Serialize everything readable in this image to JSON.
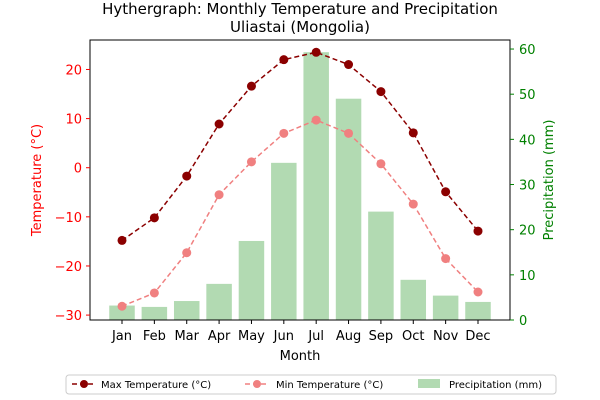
{
  "chart_data": {
    "type": "line",
    "title": "Hythergraph: Monthly Temperature and Precipitation",
    "subtitle": "Uliastai (Mongolia)",
    "xlabel": "Month",
    "ylabel_left": "Temperature (°C)",
    "ylabel_right": "Precipitation (mm)",
    "categories": [
      "Jan",
      "Feb",
      "Mar",
      "Apr",
      "May",
      "Jun",
      "Jul",
      "Aug",
      "Sep",
      "Oct",
      "Nov",
      "Dec"
    ],
    "ylim_left": [
      -31,
      26
    ],
    "ylim_right": [
      0,
      62
    ],
    "yticks_left": [
      -30,
      -20,
      -10,
      0,
      10,
      20
    ],
    "yticks_right": [
      0,
      10,
      20,
      30,
      40,
      50,
      60
    ],
    "grid": false,
    "legend_position": "bottom",
    "series": [
      {
        "name": "Max Temperature (°C)",
        "type": "line",
        "axis": "left",
        "color": "#8b0000",
        "linestyle": "dashed",
        "values": [
          -14.8,
          -10.2,
          -1.7,
          8.9,
          16.6,
          22.0,
          23.5,
          21.0,
          15.5,
          7.1,
          -4.9,
          -12.9
        ]
      },
      {
        "name": "Min Temperature (°C)",
        "type": "line",
        "axis": "left",
        "color": "#f08080",
        "linestyle": "dashed",
        "values": [
          -28.2,
          -25.5,
          -17.3,
          -5.5,
          1.2,
          7.0,
          9.7,
          7.0,
          0.8,
          -7.4,
          -18.5,
          -25.3
        ]
      },
      {
        "name": "Precipitation (mm)",
        "type": "bar",
        "axis": "right",
        "color": "#b2dab2",
        "values": [
          3.2,
          2.9,
          4.2,
          8.0,
          17.5,
          34.8,
          59.3,
          49.0,
          24.0,
          8.9,
          5.4,
          4.0
        ]
      }
    ]
  }
}
